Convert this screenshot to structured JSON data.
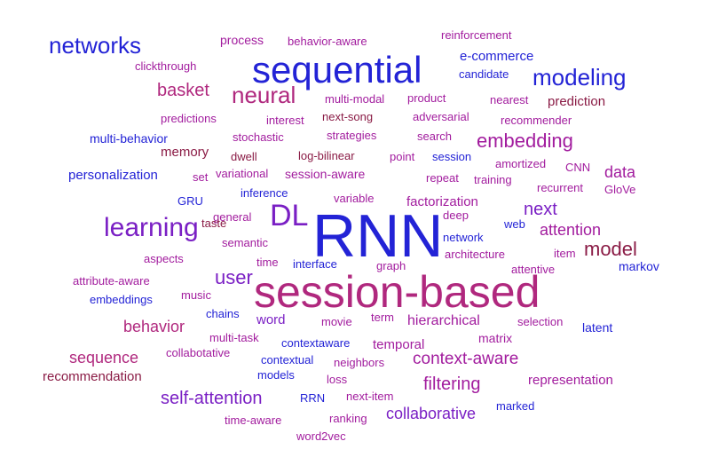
{
  "colors": {
    "background": "#ffffff",
    "blue": "#2323d6",
    "violet": "#7a1fc4",
    "purple": "#a21c9e",
    "magenta": "#b0287e",
    "maroon": "#8a1b45"
  },
  "words": [
    {
      "text": "RNN",
      "color": "blue"
    },
    {
      "text": "session-based",
      "color": "magenta"
    },
    {
      "text": "sequential",
      "color": "blue"
    },
    {
      "text": "DL",
      "color": "violet"
    },
    {
      "text": "learning",
      "color": "violet"
    },
    {
      "text": "networks",
      "color": "blue"
    },
    {
      "text": "modeling",
      "color": "blue"
    },
    {
      "text": "neural",
      "color": "magenta"
    },
    {
      "text": "embedding",
      "color": "purple"
    },
    {
      "text": "basket",
      "color": "magenta"
    },
    {
      "text": "user",
      "color": "violet"
    },
    {
      "text": "model",
      "color": "maroon"
    },
    {
      "text": "next",
      "color": "violet"
    },
    {
      "text": "attention",
      "color": "purple"
    },
    {
      "text": "self-attention",
      "color": "violet"
    },
    {
      "text": "collaborative",
      "color": "violet"
    },
    {
      "text": "context-aware",
      "color": "purple"
    },
    {
      "text": "filtering",
      "color": "purple"
    },
    {
      "text": "sequence",
      "color": "magenta"
    },
    {
      "text": "behavior",
      "color": "magenta"
    },
    {
      "text": "data",
      "color": "purple"
    },
    {
      "text": "hierarchical",
      "color": "purple"
    },
    {
      "text": "prediction",
      "color": "maroon"
    },
    {
      "text": "personalization",
      "color": "blue"
    },
    {
      "text": "recommendation",
      "color": "maroon"
    },
    {
      "text": "representation",
      "color": "purple"
    },
    {
      "text": "factorization",
      "color": "purple"
    },
    {
      "text": "multi-behavior",
      "color": "blue"
    },
    {
      "text": "memory",
      "color": "maroon"
    },
    {
      "text": "session-aware",
      "color": "purple"
    },
    {
      "text": "temporal",
      "color": "purple"
    },
    {
      "text": "word",
      "color": "violet"
    },
    {
      "text": "matrix",
      "color": "purple"
    },
    {
      "text": "latent",
      "color": "blue"
    },
    {
      "text": "markov",
      "color": "blue"
    },
    {
      "text": "e-commerce",
      "color": "blue"
    },
    {
      "text": "process",
      "color": "purple"
    },
    {
      "text": "behavior-aware",
      "color": "purple"
    },
    {
      "text": "reinforcement",
      "color": "purple"
    },
    {
      "text": "clickthrough",
      "color": "purple"
    },
    {
      "text": "candidate",
      "color": "blue"
    },
    {
      "text": "multi-modal",
      "color": "purple"
    },
    {
      "text": "product",
      "color": "purple"
    },
    {
      "text": "nearest",
      "color": "purple"
    },
    {
      "text": "predictions",
      "color": "purple"
    },
    {
      "text": "interest",
      "color": "purple"
    },
    {
      "text": "next-song",
      "color": "maroon"
    },
    {
      "text": "adversarial",
      "color": "purple"
    },
    {
      "text": "recommender",
      "color": "purple"
    },
    {
      "text": "stochastic",
      "color": "purple"
    },
    {
      "text": "strategies",
      "color": "purple"
    },
    {
      "text": "search",
      "color": "purple"
    },
    {
      "text": "dwell",
      "color": "maroon"
    },
    {
      "text": "log-bilinear",
      "color": "maroon"
    },
    {
      "text": "point",
      "color": "purple"
    },
    {
      "text": "session",
      "color": "blue"
    },
    {
      "text": "amortized",
      "color": "purple"
    },
    {
      "text": "CNN",
      "color": "purple"
    },
    {
      "text": "set",
      "color": "purple"
    },
    {
      "text": "variational",
      "color": "purple"
    },
    {
      "text": "repeat",
      "color": "purple"
    },
    {
      "text": "training",
      "color": "purple"
    },
    {
      "text": "recurrent",
      "color": "purple"
    },
    {
      "text": "GloVe",
      "color": "purple"
    },
    {
      "text": "GRU",
      "color": "blue"
    },
    {
      "text": "inference",
      "color": "blue"
    },
    {
      "text": "variable",
      "color": "purple"
    },
    {
      "text": "general",
      "color": "purple"
    },
    {
      "text": "deep",
      "color": "purple"
    },
    {
      "text": "web",
      "color": "blue"
    },
    {
      "text": "taste",
      "color": "maroon"
    },
    {
      "text": "semantic",
      "color": "purple"
    },
    {
      "text": "network",
      "color": "blue"
    },
    {
      "text": "item",
      "color": "purple"
    },
    {
      "text": "aspects",
      "color": "purple"
    },
    {
      "text": "time",
      "color": "purple"
    },
    {
      "text": "interface",
      "color": "blue"
    },
    {
      "text": "graph",
      "color": "purple"
    },
    {
      "text": "architecture",
      "color": "purple"
    },
    {
      "text": "attentive",
      "color": "purple"
    },
    {
      "text": "attribute-aware",
      "color": "purple"
    },
    {
      "text": "music",
      "color": "purple"
    },
    {
      "text": "embeddings",
      "color": "blue"
    },
    {
      "text": "chains",
      "color": "blue"
    },
    {
      "text": "movie",
      "color": "purple"
    },
    {
      "text": "term",
      "color": "purple"
    },
    {
      "text": "selection",
      "color": "purple"
    },
    {
      "text": "multi-task",
      "color": "purple"
    },
    {
      "text": "contextaware",
      "color": "blue"
    },
    {
      "text": "collabotative",
      "color": "purple"
    },
    {
      "text": "contextual",
      "color": "blue"
    },
    {
      "text": "neighbors",
      "color": "purple"
    },
    {
      "text": "models",
      "color": "blue"
    },
    {
      "text": "loss",
      "color": "purple"
    },
    {
      "text": "RRN",
      "color": "blue"
    },
    {
      "text": "next-item",
      "color": "purple"
    },
    {
      "text": "marked",
      "color": "blue"
    },
    {
      "text": "time-aware",
      "color": "purple"
    },
    {
      "text": "ranking",
      "color": "purple"
    },
    {
      "text": "word2vec",
      "color": "purple"
    }
  ]
}
